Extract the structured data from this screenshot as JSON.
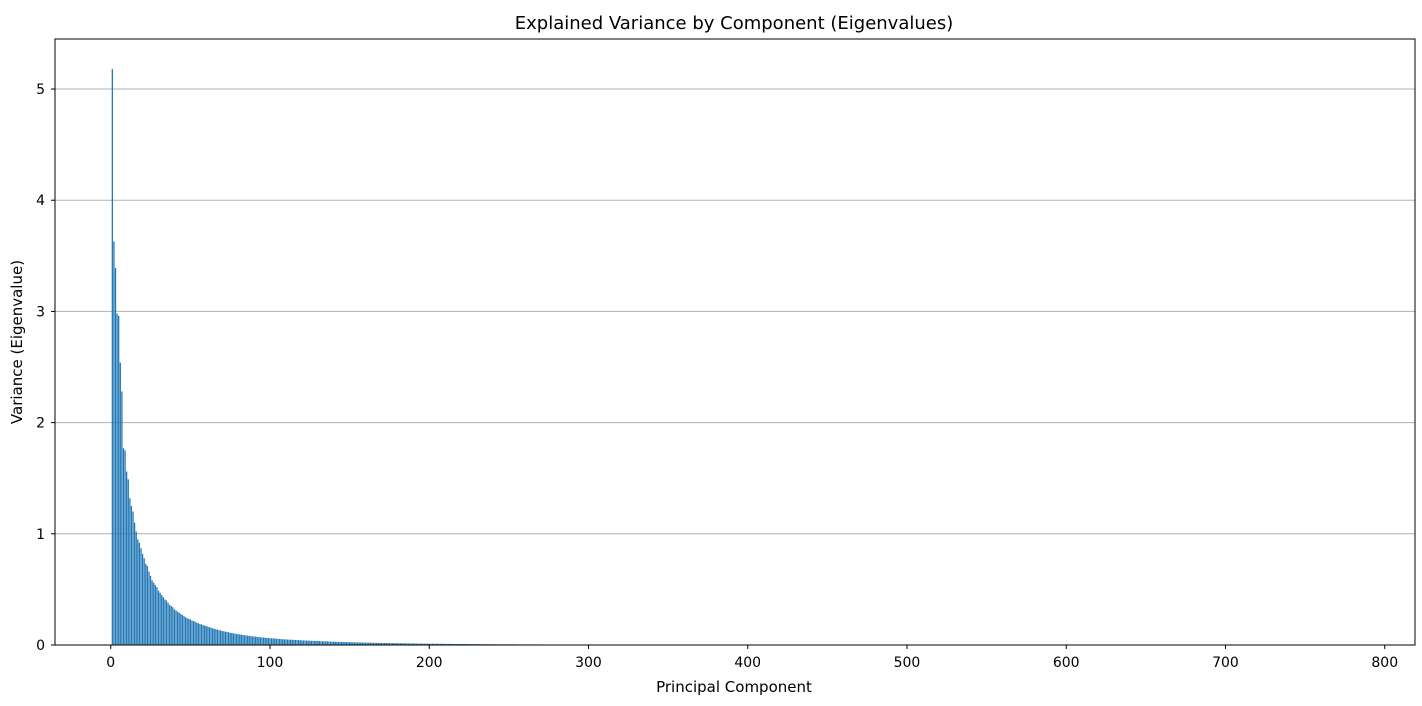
{
  "chart_data": {
    "type": "bar",
    "title": "Explained Variance by Component (Eigenvalues)",
    "xlabel": "Principal Component",
    "ylabel": "Variance (Eigenvalue)",
    "xlim": [
      -35,
      819
    ],
    "ylim": [
      0,
      5.45
    ],
    "xticks": [
      0,
      100,
      200,
      300,
      400,
      500,
      600,
      700,
      800
    ],
    "yticks": [
      0,
      1,
      2,
      3,
      4,
      5
    ],
    "grid": "y-major",
    "bar_color": "#1f77b4",
    "x_start": 1,
    "values": [
      5.18,
      3.63,
      3.39,
      2.98,
      2.96,
      2.54,
      2.28,
      1.77,
      1.75,
      1.56,
      1.49,
      1.32,
      1.25,
      1.2,
      1.1,
      1.02,
      0.95,
      0.92,
      0.87,
      0.82,
      0.78,
      0.73,
      0.71,
      0.66,
      0.62,
      0.58,
      0.56,
      0.54,
      0.52,
      0.49,
      0.47,
      0.45,
      0.43,
      0.41,
      0.4,
      0.38,
      0.36,
      0.35,
      0.34,
      0.32,
      0.31,
      0.3,
      0.29,
      0.28,
      0.27,
      0.26,
      0.25,
      0.24,
      0.235,
      0.23,
      0.22,
      0.215,
      0.21,
      0.2,
      0.195,
      0.19,
      0.185,
      0.18,
      0.175,
      0.17,
      0.165,
      0.16,
      0.155,
      0.15,
      0.146,
      0.142,
      0.138,
      0.134,
      0.13,
      0.127,
      0.123,
      0.12,
      0.117,
      0.114,
      0.111,
      0.108,
      0.105,
      0.102,
      0.1,
      0.097,
      0.095,
      0.093,
      0.09,
      0.088,
      0.086,
      0.084,
      0.082,
      0.08,
      0.078,
      0.076,
      0.075,
      0.073,
      0.071,
      0.07,
      0.068,
      0.067,
      0.065,
      0.064,
      0.063,
      0.061,
      0.06,
      0.059,
      0.058,
      0.057,
      0.055,
      0.054,
      0.053,
      0.052,
      0.051,
      0.05,
      0.049,
      0.048,
      0.048,
      0.047,
      0.046,
      0.045,
      0.044,
      0.044,
      0.043,
      0.042,
      0.041,
      0.041,
      0.04,
      0.039,
      0.039,
      0.038,
      0.037,
      0.037,
      0.036,
      0.035,
      0.035,
      0.034,
      0.034,
      0.033,
      0.033,
      0.032,
      0.031,
      0.031,
      0.03,
      0.03,
      0.029,
      0.029,
      0.028,
      0.028,
      0.028,
      0.027,
      0.027,
      0.026,
      0.026,
      0.025,
      0.025,
      0.025,
      0.024,
      0.024,
      0.023,
      0.023,
      0.023,
      0.022,
      0.022,
      0.022,
      0.021,
      0.021,
      0.021,
      0.02,
      0.02,
      0.02,
      0.019,
      0.019,
      0.019,
      0.019,
      0.018,
      0.018,
      0.018,
      0.017,
      0.017,
      0.017,
      0.017,
      0.016,
      0.016,
      0.016,
      0.016,
      0.016,
      0.015,
      0.015,
      0.015,
      0.015,
      0.014,
      0.014,
      0.014,
      0.014,
      0.014,
      0.013,
      0.013,
      0.013,
      0.013,
      0.013,
      0.012,
      0.012,
      0.012,
      0.012,
      0.012,
      0.012,
      0.011,
      0.011,
      0.011,
      0.011,
      0.011,
      0.011,
      0.01,
      0.01,
      0.01,
      0.01,
      0.01,
      0.01,
      0.01,
      0.009,
      0.009,
      0.009,
      0.009,
      0.009,
      0.009,
      0.009,
      0.009,
      0.008,
      0.008,
      0.008,
      0.008,
      0.008,
      0.008,
      0.008,
      0.008,
      0.008,
      0.007,
      0.007,
      0.007,
      0.007,
      0.007,
      0.007,
      0.007,
      0.007,
      0.007,
      0.007,
      0.006,
      0.006,
      0.006,
      0.006,
      0.006,
      0.006,
      0.006,
      0.006,
      0.006,
      0.006,
      0.006,
      0.006,
      0.005,
      0.005,
      0.005,
      0.005,
      0.005,
      0.005,
      0.005,
      0.005,
      0.005,
      0.005,
      0.005,
      0.005,
      0.005,
      0.005,
      0.004,
      0.004,
      0.004,
      0.004,
      0.004,
      0.004,
      0.004,
      0.004,
      0.004,
      0.004,
      0.004,
      0.004,
      0.004,
      0.004,
      0.004,
      0.004,
      0.004,
      0.003,
      0.003,
      0.003,
      0.003,
      0.003,
      0.003,
      0.003,
      0.003,
      0.003,
      0.003,
      0.003,
      0.003,
      0.003,
      0.003,
      0.003,
      0.003,
      0.003,
      0.003,
      0.003,
      0.003,
      0.003,
      0.002,
      0.002,
      0.002,
      0.002,
      0.002,
      0.002,
      0.002,
      0.002,
      0.002,
      0.002,
      0.002,
      0.002,
      0.002,
      0.002,
      0.002,
      0.002,
      0.002,
      0.002,
      0.002,
      0.002,
      0.002,
      0.002,
      0.002,
      0.002,
      0.002,
      0.002,
      0.002,
      0.002,
      0.002,
      0.002,
      0.002,
      0.002,
      0.001,
      0.001,
      0.001,
      0.001,
      0.001,
      0.001,
      0.001,
      0.001,
      0.001,
      0.001,
      0.001,
      0.001,
      0.001,
      0.001,
      0.001,
      0.001,
      0.001,
      0.001,
      0.001,
      0.001,
      0.001,
      0.001,
      0.001,
      0.001,
      0.001,
      0.001,
      0.001,
      0.001,
      0.001,
      0.001,
      0.001,
      0.001,
      0.001,
      0.001,
      0.001,
      0.001,
      0.001,
      0.001,
      0.001,
      0.001,
      0.001,
      0.001,
      0.001,
      0.001,
      0.001,
      0.001,
      0.001,
      0.001,
      0.001,
      0.001,
      0.001,
      0.001,
      0.001,
      0.001,
      0.001,
      0.001,
      0.001,
      0.001,
      0.001,
      0.001,
      0.001,
      0.001,
      0.001,
      0.001,
      0.001,
      0.001,
      0.001,
      0.001,
      0.001,
      0.001,
      0.001,
      0.001,
      0.001,
      0.001,
      0.001,
      0.001,
      0.001,
      0.001,
      0.001,
      0.001,
      0.001,
      0.001,
      0.001,
      0.001,
      0.001,
      0.001,
      0.001,
      0.001,
      0.001,
      0.001,
      0.001,
      0.001,
      0.001,
      0.001,
      0.001,
      0.001,
      0.001,
      0.001,
      0.001,
      0.001,
      0.001,
      0.001,
      0.001,
      0.001,
      0.001,
      0.001,
      0.001,
      0.001,
      0.001,
      0.001,
      0.001,
      0.001,
      0.001,
      0.001,
      0.001,
      0.001,
      0.001,
      0.001,
      0.001,
      0.001,
      0.001,
      0.001,
      0.001,
      0.001,
      0.001,
      0.001,
      0.001,
      0.001,
      0.001,
      0.001,
      0.001,
      0.001,
      0.001,
      0.001,
      0.001,
      0.001,
      0.001,
      0.001,
      0.001,
      0.001,
      0.001,
      0.001,
      0.001,
      0.001,
      0.001,
      0.001,
      0.001,
      0.001,
      0.001,
      0.001,
      0.001,
      0.001,
      0.001,
      0.001,
      0.001,
      0.001,
      0.001,
      0.001,
      0.001,
      0.001,
      0.001,
      0.001,
      0.001,
      0.001,
      0.001,
      0.001,
      0.001,
      0.001,
      0.001,
      0.001,
      0.001,
      0.001,
      0.001,
      0.001,
      0.001,
      0.001,
      0.001,
      0.001,
      0.001,
      0.001,
      0.001,
      0.001,
      0.001,
      0.001,
      0.001,
      0.001,
      0.001,
      0.001,
      0.001,
      0.001,
      0.001,
      0.001,
      0.001,
      0.001,
      0.001,
      0.001,
      0.001,
      0.001,
      0.001,
      0.001,
      0.001,
      0.001,
      0.001,
      0.001,
      0.001,
      0.001,
      0.001,
      0.001,
      0.001,
      0.001,
      0.001,
      0.001,
      0.001,
      0.001,
      0.001,
      0.001,
      0.001,
      0.001,
      0.001,
      0.001,
      0.001,
      0.001,
      0.001,
      0.001,
      0.001,
      0.001,
      0.001,
      0.001,
      0.001,
      0.001,
      0.001,
      0.001,
      0.001,
      0.001,
      0.001,
      0.001,
      0.001,
      0.001,
      0.001,
      0.001,
      0.001,
      0.001,
      0.001,
      0.001,
      0.001,
      0.001,
      0.001,
      0.001,
      0.001,
      0.001,
      0.001,
      0.001,
      0.001,
      0.001,
      0.001,
      0.001,
      0.001,
      0.001,
      0.001,
      0.001,
      0.001,
      0.001,
      0.001,
      0.001,
      0.001,
      0.001,
      0.001,
      0.001,
      0.001,
      0.001,
      0.001,
      0.001,
      0.001,
      0.001,
      0.001,
      0.001,
      0.001,
      0.001,
      0.001,
      0.001,
      0.001,
      0.001,
      0.001,
      0.001,
      0.001,
      0.001,
      0.001,
      0.001,
      0.001,
      0.001,
      0.001,
      0.001,
      0.001,
      0.001,
      0.001,
      0.001,
      0.001,
      0.001,
      0.001,
      0.001,
      0.001,
      0.001,
      0.001,
      0.001,
      0.001,
      0.001,
      0.001,
      0.001,
      0.001,
      0.001,
      0.001,
      0.001,
      0.001,
      0.001,
      0.001,
      0.001,
      0.001,
      0.001,
      0.001,
      0.001,
      0.001,
      0.001,
      0.001,
      0.001,
      0.001,
      0.001,
      0.001,
      0.001,
      0.001,
      0.001,
      0.001,
      0.001,
      0.001,
      0.001,
      0.001,
      0.001,
      0.001,
      0.001,
      0.001,
      0.001,
      0.001,
      0.001,
      0.001,
      0.001,
      0.001,
      0.001,
      0.001,
      0.001,
      0.001,
      0.001,
      0.001,
      0.001,
      0.001,
      0.001,
      0.001,
      0.001,
      0.001,
      0.001,
      0.001,
      0.001,
      0.001,
      0.001,
      0.001,
      0.001,
      0.001,
      0.001,
      0.001,
      0.001,
      0.001,
      0.001,
      0.001,
      0.001,
      0.001,
      0.001,
      0.001,
      0.001,
      0.001,
      0.001,
      0.001,
      0.001,
      0.001,
      0.001,
      0.001,
      0.001,
      0.001,
      0.001,
      0.001,
      0.001,
      0.001,
      0.001,
      0.001,
      0.001,
      0.001,
      0.001,
      0.001,
      0.001,
      0.001,
      0.001,
      0.001,
      0.001,
      0.001,
      0.001,
      0.001,
      0.001,
      0.001,
      0.001,
      0.001,
      0.001,
      0.001,
      0.001,
      0.001,
      0.001,
      0.001,
      0.001,
      0.001,
      0.001,
      0.001,
      0.001,
      0.001,
      0.001,
      0.001,
      0.001,
      0.001,
      0.001,
      0.001,
      0.001,
      0.001,
      0.001,
      0.001,
      0.001,
      0.001,
      0.001,
      0.001,
      0.001,
      0.001,
      0.001,
      0.001,
      0.001,
      0.001,
      0.001,
      0.001,
      0.001,
      0.001,
      0.001,
      0.001,
      0.001,
      0.001,
      0.001,
      0.001,
      0.001,
      0.001,
      0.001,
      0.001,
      0.001,
      0.001,
      0.001,
      0.001,
      0.001,
      0.001,
      0.001,
      0.001,
      0.001,
      0.001,
      0.001,
      0.001,
      0.001,
      0.001,
      0.001,
      0.001,
      0.001,
      0.001,
      0.001,
      0.001,
      0.001,
      0.001
    ]
  }
}
